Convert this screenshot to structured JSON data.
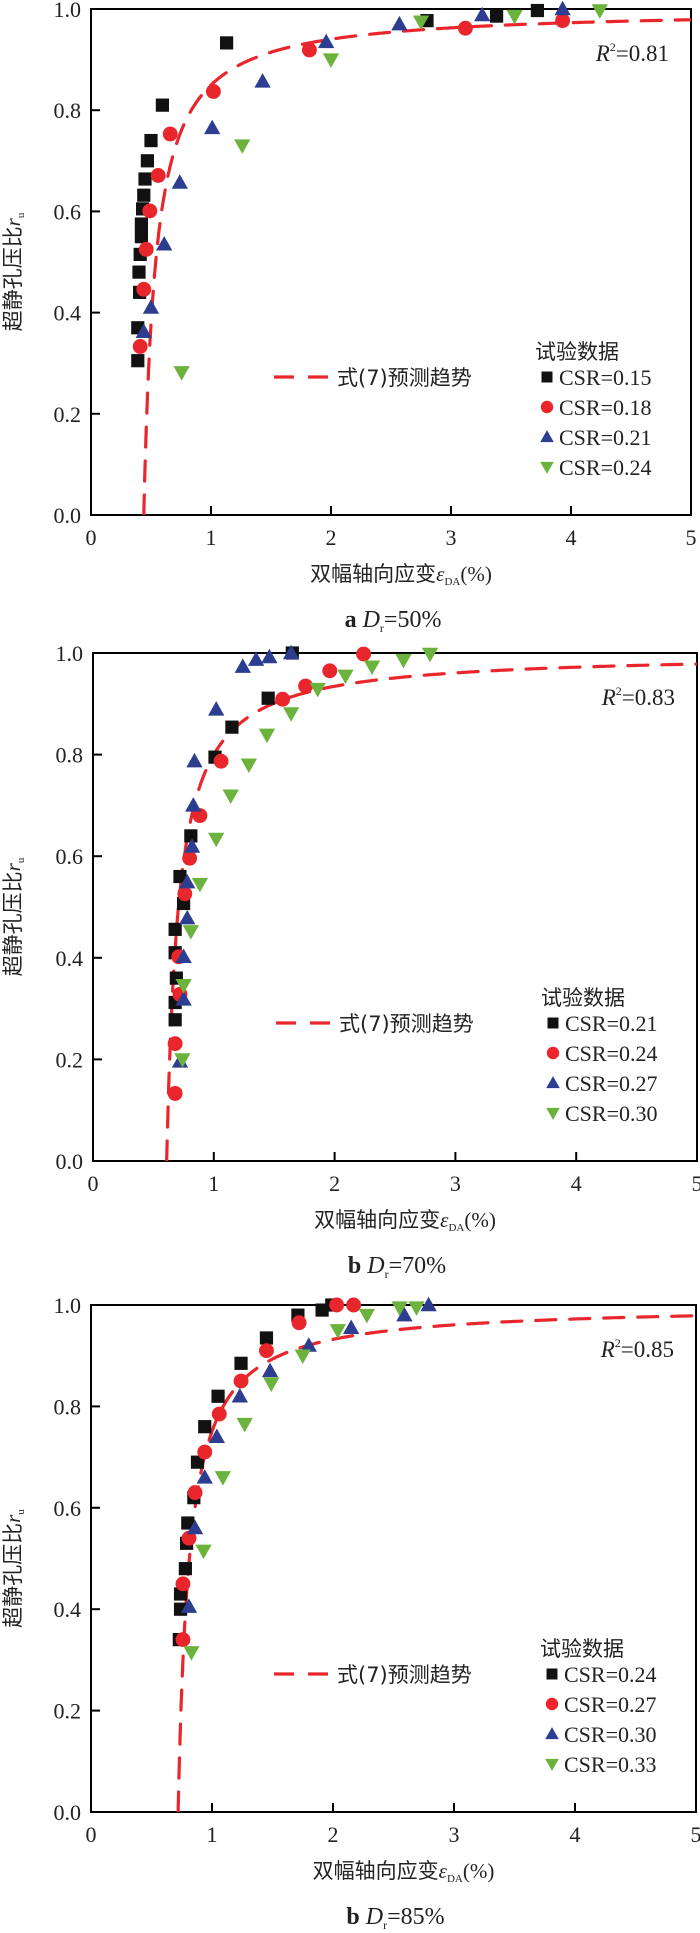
{
  "colors": {
    "square": "#111111",
    "circle": "#e8262b",
    "triangle_up": "#2d3e91",
    "triangle_down": "#6cb33e",
    "curve": "#e8262b",
    "axis": "#000000"
  },
  "chart_data": [
    {
      "type": "scatter",
      "caption_prefix": "a",
      "caption_var": "D",
      "caption_sub": "r",
      "caption_value": "=50%",
      "ylabel": "超静孔压比",
      "ylabel_var": "r",
      "ylabel_sub": "u",
      "xlabel": "双幅轴向应变",
      "xlabel_var": "ε",
      "xlabel_sub": "DA",
      "xlabel_unit": "(%)",
      "xlim": [
        0,
        5
      ],
      "ylim": [
        0,
        1.0
      ],
      "xticks": [
        "0",
        "1",
        "2",
        "3",
        "4",
        "5"
      ],
      "yticks": [
        "0.0",
        "0.2",
        "0.4",
        "0.6",
        "0.8",
        "1.0"
      ],
      "grid": false,
      "r2_label": "R",
      "r2_value": "=0.81",
      "legend_position": "bottom-right",
      "legend_title": "试验数据",
      "curve_label": "式(7)预测趋势",
      "curve": {
        "x0": 0.44,
        "A": 1.0,
        "B": 0.099
      },
      "series": [
        {
          "name": "CSR=0.15",
          "marker": "square",
          "points": [
            [
              0.39,
              0.305
            ],
            [
              0.39,
              0.37
            ],
            [
              0.405,
              0.44
            ],
            [
              0.4,
              0.48
            ],
            [
              0.41,
              0.515
            ],
            [
              0.42,
              0.55
            ],
            [
              0.42,
              0.575
            ],
            [
              0.43,
              0.605
            ],
            [
              0.44,
              0.632
            ],
            [
              0.45,
              0.664
            ],
            [
              0.47,
              0.7
            ],
            [
              0.5,
              0.74
            ],
            [
              0.595,
              0.81
            ],
            [
              1.13,
              0.933
            ],
            [
              2.8,
              0.977
            ],
            [
              3.38,
              0.986
            ],
            [
              3.72,
              0.997
            ]
          ]
        },
        {
          "name": "CSR=0.18",
          "marker": "circle",
          "points": [
            [
              0.41,
              0.333
            ],
            [
              0.44,
              0.446
            ],
            [
              0.46,
              0.525
            ],
            [
              0.49,
              0.601
            ],
            [
              0.56,
              0.671
            ],
            [
              0.66,
              0.753
            ],
            [
              1.02,
              0.837
            ],
            [
              1.82,
              0.919
            ],
            [
              3.12,
              0.962
            ],
            [
              3.93,
              0.977
            ]
          ]
        },
        {
          "name": "CSR=0.21",
          "marker": "triangle_up",
          "points": [
            [
              0.44,
              0.362
            ],
            [
              0.5,
              0.41
            ],
            [
              0.61,
              0.535
            ],
            [
              0.74,
              0.657
            ],
            [
              1.01,
              0.765
            ],
            [
              1.43,
              0.857
            ],
            [
              1.96,
              0.935
            ],
            [
              2.57,
              0.97
            ],
            [
              3.26,
              0.988
            ],
            [
              3.93,
              1.0
            ]
          ]
        },
        {
          "name": "CSR=0.24",
          "marker": "triangle_down",
          "points": [
            [
              0.755,
              0.282
            ],
            [
              1.26,
              0.73
            ],
            [
              2.0,
              0.9
            ],
            [
              2.75,
              0.975
            ],
            [
              3.53,
              0.986
            ],
            [
              4.24,
              0.997
            ]
          ]
        }
      ]
    },
    {
      "type": "scatter",
      "caption_prefix": "b",
      "caption_var": "D",
      "caption_sub": "r",
      "caption_value": "=70%",
      "ylabel": "超静孔压比",
      "ylabel_var": "r",
      "ylabel_sub": "u",
      "xlabel": "双幅轴向应变",
      "xlabel_var": "ε",
      "xlabel_sub": "DA",
      "xlabel_unit": "(%)",
      "xlim": [
        0,
        5
      ],
      "ylim": [
        0,
        1.0
      ],
      "xticks": [
        "0",
        "1",
        "2",
        "3",
        "4",
        "5"
      ],
      "yticks": [
        "0.0",
        "0.2",
        "0.4",
        "0.6",
        "0.8",
        "1.0"
      ],
      "grid": false,
      "r2_label": "R",
      "r2_value": "=0.83",
      "legend_position": "bottom-right",
      "legend_title": "试验数据",
      "curve_label": "式(7)预测趋势",
      "curve": {
        "x0": 0.61,
        "A": 1.0,
        "B": 0.0975
      },
      "series": [
        {
          "name": "CSR=0.21",
          "marker": "square",
          "points": [
            [
              0.68,
              0.278
            ],
            [
              0.68,
              0.312
            ],
            [
              0.69,
              0.36
            ],
            [
              0.68,
              0.41
            ],
            [
              0.68,
              0.456
            ],
            [
              0.75,
              0.507
            ],
            [
              0.72,
              0.56
            ],
            [
              0.81,
              0.64
            ],
            [
              1.01,
              0.795
            ],
            [
              1.15,
              0.854
            ],
            [
              1.45,
              0.911
            ],
            [
              1.65,
              1.0
            ]
          ]
        },
        {
          "name": "CSR=0.24",
          "marker": "circle",
          "points": [
            [
              0.68,
              0.133
            ],
            [
              0.68,
              0.231
            ],
            [
              0.72,
              0.328
            ],
            [
              0.71,
              0.402
            ],
            [
              0.76,
              0.526
            ],
            [
              0.8,
              0.596
            ],
            [
              0.885,
              0.68
            ],
            [
              1.06,
              0.787
            ],
            [
              1.57,
              0.909
            ],
            [
              1.76,
              0.935
            ],
            [
              1.96,
              0.965
            ],
            [
              2.24,
              0.998
            ]
          ]
        },
        {
          "name": "CSR=0.27",
          "marker": "triangle_up",
          "points": [
            [
              0.72,
              0.196
            ],
            [
              0.75,
              0.318
            ],
            [
              0.75,
              0.402
            ],
            [
              0.78,
              0.478
            ],
            [
              0.78,
              0.549
            ],
            [
              0.82,
              0.619
            ],
            [
              0.83,
              0.7
            ],
            [
              0.84,
              0.787
            ],
            [
              1.02,
              0.889
            ],
            [
              1.24,
              0.973
            ],
            [
              1.35,
              0.987
            ],
            [
              1.46,
              0.992
            ],
            [
              1.64,
              1.0
            ]
          ]
        },
        {
          "name": "CSR=0.30",
          "marker": "triangle_down",
          "points": [
            [
              0.74,
              0.2
            ],
            [
              0.75,
              0.346
            ],
            [
              0.81,
              0.452
            ],
            [
              0.885,
              0.545
            ],
            [
              1.02,
              0.634
            ],
            [
              1.14,
              0.719
            ],
            [
              1.29,
              0.78
            ],
            [
              1.44,
              0.839
            ],
            [
              1.64,
              0.881
            ],
            [
              1.86,
              0.929
            ],
            [
              2.09,
              0.955
            ],
            [
              2.31,
              0.973
            ],
            [
              2.57,
              0.986
            ],
            [
              2.79,
              0.998
            ]
          ]
        }
      ]
    },
    {
      "type": "scatter",
      "caption_prefix": "b",
      "caption_var": "D",
      "caption_sub": "r",
      "caption_value": "=85%",
      "ylabel": "超静孔压比",
      "ylabel_var": "r",
      "ylabel_sub": "u",
      "xlabel": "双幅轴向应变",
      "xlabel_var": "ε",
      "xlabel_sub": "DA",
      "xlabel_unit": "(%)",
      "xlim": [
        0,
        5
      ],
      "ylim": [
        0,
        1.0
      ],
      "xticks": [
        "0",
        "1",
        "2",
        "3",
        "4",
        "5"
      ],
      "yticks": [
        "0.0",
        "0.2",
        "0.4",
        "0.6",
        "0.8",
        "1.0"
      ],
      "grid": false,
      "r2_label": "R",
      "r2_value": "=0.85",
      "legend_position": "bottom-right",
      "legend_title": "试验数据",
      "curve_label": "式(7)预测趋势",
      "curve": {
        "x0": 0.72,
        "A": 1.0,
        "B": 0.093
      },
      "series": [
        {
          "name": "CSR=0.24",
          "marker": "square",
          "points": [
            [
              0.73,
              0.34
            ],
            [
              0.74,
              0.4
            ],
            [
              0.74,
              0.43
            ],
            [
              0.78,
              0.48
            ],
            [
              0.79,
              0.53
            ],
            [
              0.8,
              0.57
            ],
            [
              0.85,
              0.62
            ],
            [
              0.88,
              0.69
            ],
            [
              0.94,
              0.76
            ],
            [
              1.05,
              0.82
            ],
            [
              1.24,
              0.885
            ],
            [
              1.45,
              0.935
            ],
            [
              1.71,
              0.98
            ],
            [
              1.91,
              0.99
            ],
            [
              1.99,
              1.0
            ]
          ]
        },
        {
          "name": "CSR=0.27",
          "marker": "circle",
          "points": [
            [
              0.76,
              0.34
            ],
            [
              0.76,
              0.45
            ],
            [
              0.81,
              0.54
            ],
            [
              0.86,
              0.63
            ],
            [
              0.94,
              0.71
            ],
            [
              1.06,
              0.785
            ],
            [
              1.24,
              0.85
            ],
            [
              1.45,
              0.91
            ],
            [
              1.72,
              0.965
            ],
            [
              2.03,
              1.0
            ],
            [
              2.17,
              1.0
            ]
          ]
        },
        {
          "name": "CSR=0.30",
          "marker": "triangle_up",
          "points": [
            [
              0.81,
              0.405
            ],
            [
              0.86,
              0.56
            ],
            [
              0.94,
              0.66
            ],
            [
              1.04,
              0.74
            ],
            [
              1.23,
              0.82
            ],
            [
              1.48,
              0.87
            ],
            [
              1.8,
              0.92
            ],
            [
              2.15,
              0.955
            ],
            [
              2.59,
              0.98
            ],
            [
              2.79,
              1.0
            ]
          ]
        },
        {
          "name": "CSR=0.33",
          "marker": "triangle_down",
          "points": [
            [
              0.83,
              0.315
            ],
            [
              0.93,
              0.515
            ],
            [
              1.09,
              0.66
            ],
            [
              1.27,
              0.765
            ],
            [
              1.49,
              0.845
            ],
            [
              1.75,
              0.9
            ],
            [
              2.04,
              0.95
            ],
            [
              2.28,
              0.98
            ],
            [
              2.55,
              0.995
            ],
            [
              2.69,
              0.995
            ]
          ]
        }
      ]
    }
  ]
}
